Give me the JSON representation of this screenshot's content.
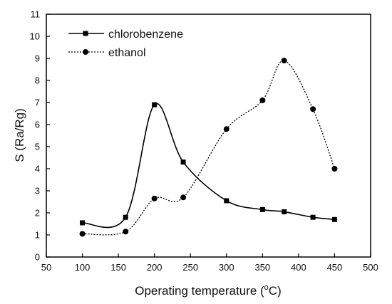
{
  "chart_data": {
    "type": "line",
    "xlabel": "Operating temperature (°C)",
    "xlabel_parts": {
      "main": "Operating temperature (",
      "sup": "o",
      "end": "C)"
    },
    "ylabel": "S (Ra/Rg)",
    "xlim": [
      50,
      500
    ],
    "ylim": [
      0,
      11
    ],
    "xticks": [
      "50",
      "100",
      "150",
      "200",
      "250",
      "300",
      "350",
      "400",
      "450",
      "500"
    ],
    "yticks": [
      "0",
      "1",
      "2",
      "3",
      "4",
      "5",
      "6",
      "7",
      "8",
      "9",
      "10",
      "11"
    ],
    "legend_position": "top-left",
    "grid": false,
    "series": [
      {
        "name": "chlorobenzene",
        "marker": "square",
        "line_style": "solid",
        "color": "#000000",
        "x": [
          100,
          160,
          200,
          240,
          300,
          350,
          380,
          420,
          450
        ],
        "y": [
          1.55,
          1.8,
          6.9,
          4.3,
          2.55,
          2.15,
          2.05,
          1.8,
          1.7
        ]
      },
      {
        "name": "ethanol",
        "marker": "circle",
        "line_style": "dotted",
        "color": "#000000",
        "x": [
          100,
          160,
          200,
          240,
          300,
          350,
          380,
          420,
          450
        ],
        "y": [
          1.05,
          1.15,
          2.65,
          2.7,
          5.8,
          7.1,
          8.9,
          6.7,
          4.0
        ]
      }
    ]
  }
}
